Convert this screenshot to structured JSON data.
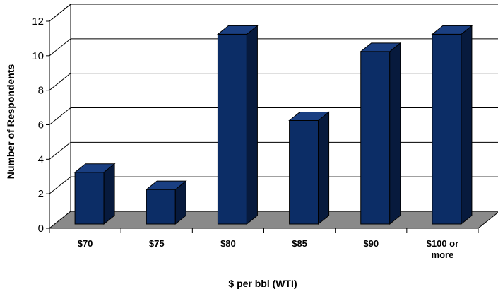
{
  "chart_data": {
    "type": "bar",
    "title": "",
    "xlabel": "$ per bbl (WTI)",
    "ylabel": "Number of Respondents",
    "categories": [
      [
        "$70"
      ],
      [
        "$75"
      ],
      [
        "$80"
      ],
      [
        "$85"
      ],
      [
        "$90"
      ],
      [
        "$100 or",
        "more"
      ]
    ],
    "values": [
      3,
      2,
      11,
      6,
      10,
      11
    ],
    "ylim": [
      0,
      12
    ],
    "yticks": [
      0,
      2,
      4,
      6,
      8,
      10,
      12
    ],
    "grid": true,
    "legend": "none",
    "style": "3d-column"
  },
  "colors": {
    "bar_front": "#0c2d66",
    "bar_side": "#071a3d",
    "bar_top": "#1a3f82",
    "floor": "#8a8a8a",
    "wall": "#ffffff",
    "grid": "#000000"
  }
}
